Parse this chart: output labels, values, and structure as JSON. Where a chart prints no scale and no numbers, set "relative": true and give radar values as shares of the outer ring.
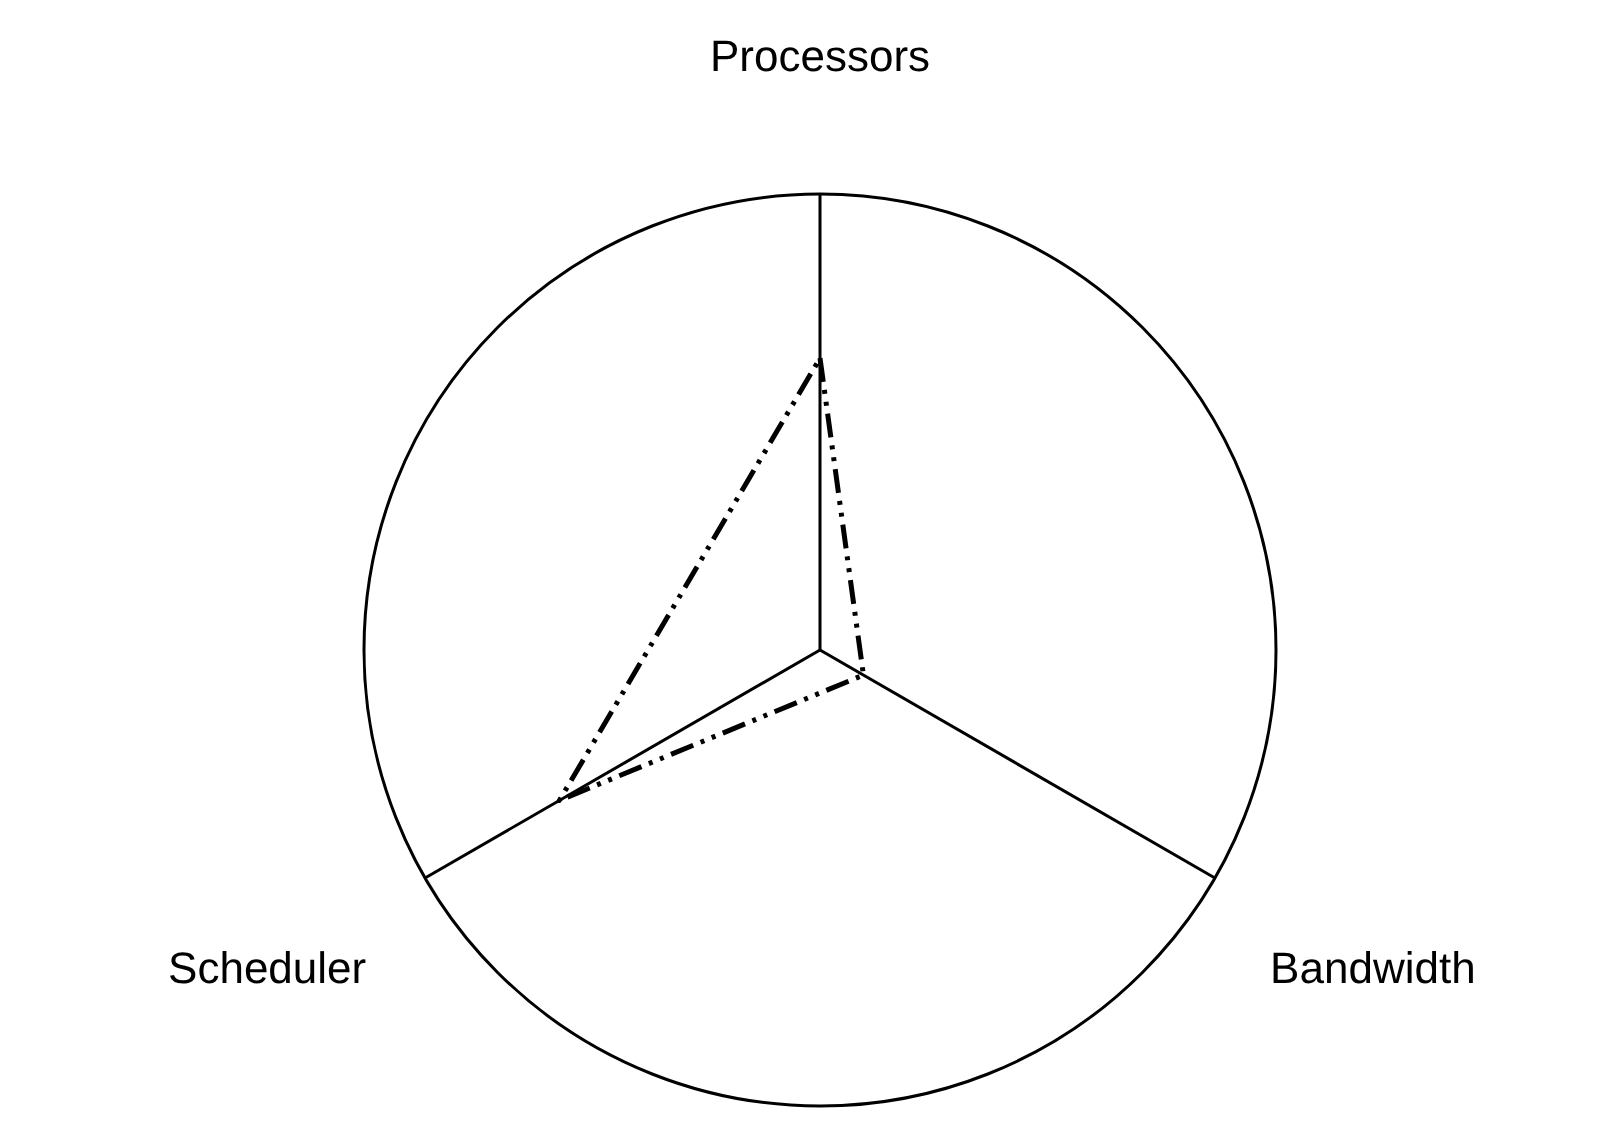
{
  "chart_data": {
    "type": "radar",
    "relative": true,
    "categories": [
      "Processors",
      "Bandwidth",
      "Scheduler"
    ],
    "series": [
      {
        "color": "#000000",
        "values": [
          0.64,
          0.11,
          0.66
        ],
        "line_style": "dashed"
      }
    ],
    "grid": true
  }
}
